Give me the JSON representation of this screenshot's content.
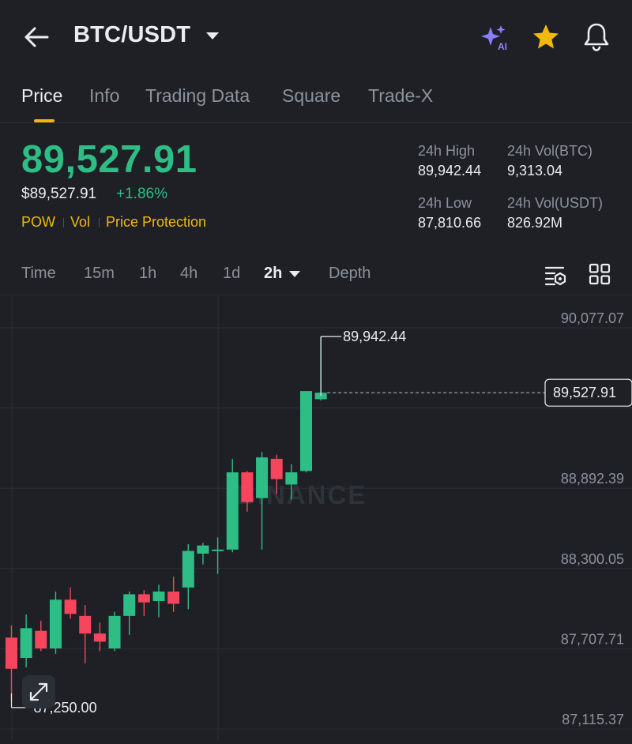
{
  "header": {
    "pair": "BTC/USDT",
    "icons": [
      "back-arrow-icon",
      "ai-sparkle-icon",
      "star-icon",
      "bell-icon"
    ],
    "favorite_color": "#F0B90B"
  },
  "tabs": [
    {
      "label": "Price",
      "active": true
    },
    {
      "label": "Info"
    },
    {
      "label": "Trading Data"
    },
    {
      "label": "Square"
    },
    {
      "label": "Trade-X"
    }
  ],
  "price": {
    "last": "89,527.91",
    "usd": "$89,527.91",
    "change": "+1.86%",
    "tags": [
      "POW",
      "Vol",
      "Price Protection"
    ]
  },
  "stats": {
    "high_label": "24h High",
    "high": "89,942.44",
    "vol_btc_label": "24h Vol(BTC)",
    "vol_btc": "9,313.04",
    "low_label": "24h Low",
    "low": "87,810.66",
    "vol_usdt_label": "24h Vol(USDT)",
    "vol_usdt": "826.92M"
  },
  "intervals": [
    "Time",
    "15m",
    "1h",
    "4h",
    "1d",
    "2h",
    "Depth"
  ],
  "active_interval": "2h",
  "colors": {
    "up": "#2EBD85",
    "down": "#F6465D",
    "accent": "#F0B90B",
    "background": "#1E2026"
  },
  "watermark": "BINANCE",
  "chart_data": {
    "type": "candlestick",
    "y_axis_ticks": [
      "90,077.07",
      "88,892.39",
      "88,300.05",
      "87,707.71",
      "87,115.37"
    ],
    "y_axis_tick_values": [
      90077.07,
      88892.39,
      88300.05,
      87707.71,
      87115.37
    ],
    "ylim": [
      87020,
      90200
    ],
    "current_price_label": "89,527.91",
    "current_price": 89527.91,
    "high_marker": {
      "label": "89,942.44",
      "value": 89942.44
    },
    "low_marker": {
      "label": "87,250.00",
      "value": 87250.0
    },
    "candles": [
      {
        "o": 87720,
        "h": 87810,
        "l": 87250,
        "c": 87490
      },
      {
        "o": 87570,
        "h": 87890,
        "l": 87500,
        "c": 87790
      },
      {
        "o": 87770,
        "h": 87845,
        "l": 87620,
        "c": 87640
      },
      {
        "o": 87640,
        "h": 88060,
        "l": 87600,
        "c": 88000
      },
      {
        "o": 88000,
        "h": 88090,
        "l": 87860,
        "c": 87895
      },
      {
        "o": 87880,
        "h": 87960,
        "l": 87530,
        "c": 87750
      },
      {
        "o": 87750,
        "h": 87830,
        "l": 87620,
        "c": 87690
      },
      {
        "o": 87640,
        "h": 87910,
        "l": 87620,
        "c": 87880
      },
      {
        "o": 87880,
        "h": 88060,
        "l": 87740,
        "c": 88040
      },
      {
        "o": 88040,
        "h": 88070,
        "l": 87880,
        "c": 87980
      },
      {
        "o": 87990,
        "h": 88110,
        "l": 87870,
        "c": 88060
      },
      {
        "o": 88060,
        "h": 88170,
        "l": 87910,
        "c": 87970
      },
      {
        "o": 88090,
        "h": 88410,
        "l": 87930,
        "c": 88360
      },
      {
        "o": 88340,
        "h": 88420,
        "l": 88260,
        "c": 88400
      },
      {
        "o": 88370,
        "h": 88460,
        "l": 88190,
        "c": 88370
      },
      {
        "o": 88370,
        "h": 89040,
        "l": 88350,
        "c": 88940
      },
      {
        "o": 88940,
        "h": 88950,
        "l": 88650,
        "c": 88720
      },
      {
        "o": 88750,
        "h": 89090,
        "l": 88370,
        "c": 89050
      },
      {
        "o": 89040,
        "h": 89070,
        "l": 88780,
        "c": 88890
      },
      {
        "o": 88850,
        "h": 89000,
        "l": 88740,
        "c": 88940
      },
      {
        "o": 88950,
        "h": 89540,
        "l": 88940,
        "c": 89540
      },
      {
        "o": 89480,
        "h": 89942.44,
        "l": 89470,
        "c": 89527.91
      }
    ]
  }
}
